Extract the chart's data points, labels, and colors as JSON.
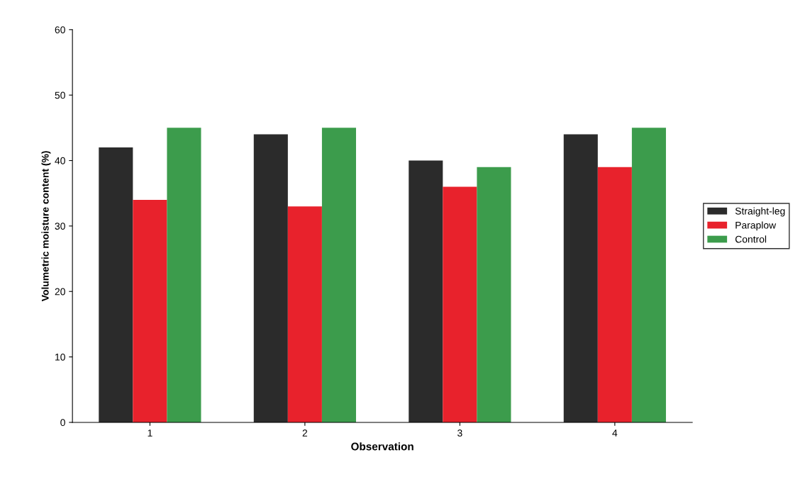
{
  "chart_data": {
    "type": "bar",
    "xlabel": "Observation",
    "ylabel": "Volumetric moisture content (%)",
    "categories": [
      "1",
      "2",
      "3",
      "4"
    ],
    "series": [
      {
        "name": "Straight-leg",
        "color": "#2b2b2b",
        "values": [
          42,
          44,
          40,
          44
        ]
      },
      {
        "name": "Paraplow",
        "color": "#e8222c",
        "values": [
          34,
          33,
          36,
          39
        ]
      },
      {
        "name": "Control",
        "color": "#3c9c4c",
        "values": [
          45,
          45,
          39,
          45
        ]
      }
    ],
    "ylim": [
      0,
      60
    ],
    "yticks": [
      0,
      10,
      20,
      30,
      40,
      50,
      60
    ],
    "grid": false,
    "legend": "right"
  }
}
